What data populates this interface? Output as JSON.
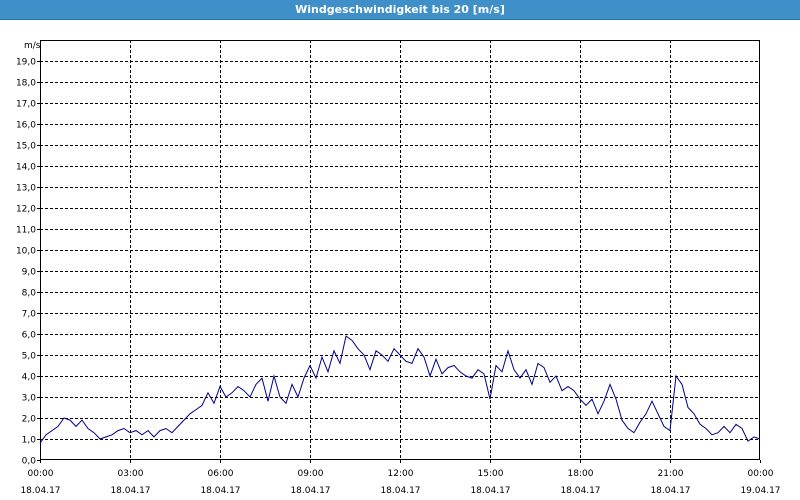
{
  "window": {
    "title": "Windgeschwindigkeit bis 20 [m/s]"
  },
  "chart_data": {
    "type": "line",
    "title": "Windgeschwindigkeit bis 20 [m/s]",
    "ylabel": "m/s",
    "xlabel": "",
    "ylim": [
      0,
      20
    ],
    "yticks": [
      "0,0",
      "1,0",
      "2,0",
      "3,0",
      "4,0",
      "5,0",
      "6,0",
      "7,0",
      "8,0",
      "9,0",
      "10,0",
      "11,0",
      "12,0",
      "13,0",
      "14,0",
      "15,0",
      "16,0",
      "17,0",
      "18,0",
      "19,0"
    ],
    "xticks": [
      {
        "time": "00:00",
        "date": "18.04.17"
      },
      {
        "time": "03:00",
        "date": "18.04.17"
      },
      {
        "time": "06:00",
        "date": "18.04.17"
      },
      {
        "time": "09:00",
        "date": "18.04.17"
      },
      {
        "time": "12:00",
        "date": "18.04.17"
      },
      {
        "time": "15:00",
        "date": "18.04.17"
      },
      {
        "time": "18:00",
        "date": "18.04.17"
      },
      {
        "time": "21:00",
        "date": "18.04.17"
      },
      {
        "time": "00:00",
        "date": "19.04.17"
      }
    ],
    "grid": true,
    "colors": {
      "line": "#00008b",
      "title_bar": "#3f8fc9"
    },
    "series": [
      {
        "x_hours": [
          0,
          0.2,
          0.4,
          0.6,
          0.8,
          1.0,
          1.2,
          1.4,
          1.6,
          1.8,
          2.0,
          2.2,
          2.4,
          2.6,
          2.8,
          3.0,
          3.2,
          3.4,
          3.6,
          3.8,
          4.0,
          4.2,
          4.4,
          4.6,
          4.8,
          5.0,
          5.2,
          5.4,
          5.6,
          5.8,
          6.0,
          6.2,
          6.4,
          6.6,
          6.8,
          7.0,
          7.2,
          7.4,
          7.6,
          7.8,
          8.0,
          8.2,
          8.4,
          8.6,
          8.8,
          9.0,
          9.2,
          9.4,
          9.6,
          9.8,
          10.0,
          10.2,
          10.4,
          10.6,
          10.8,
          11.0,
          11.2,
          11.4,
          11.6,
          11.8,
          12.0,
          12.2,
          12.4,
          12.6,
          12.8,
          13.0,
          13.2,
          13.4,
          13.6,
          13.8,
          14.0,
          14.2,
          14.4,
          14.6,
          14.8,
          15.0,
          15.2,
          15.4,
          15.6,
          15.8,
          16.0,
          16.2,
          16.4,
          16.6,
          16.8,
          17.0,
          17.2,
          17.4,
          17.6,
          17.8,
          18.0,
          18.2,
          18.4,
          18.6,
          18.8,
          19.0,
          19.2,
          19.4,
          19.6,
          19.8,
          20.0,
          20.2,
          20.4,
          20.6,
          20.8,
          21.0,
          21.2,
          21.4,
          21.6,
          21.8,
          22.0,
          22.2,
          22.4,
          22.6,
          22.8,
          23.0,
          23.2,
          23.4,
          23.6,
          23.8,
          24.0
        ],
        "values": [
          0.8,
          1.2,
          1.4,
          1.6,
          2.0,
          1.9,
          1.6,
          1.9,
          1.5,
          1.3,
          1.0,
          1.1,
          1.2,
          1.4,
          1.5,
          1.3,
          1.4,
          1.2,
          1.4,
          1.1,
          1.4,
          1.5,
          1.3,
          1.6,
          1.9,
          2.2,
          2.4,
          2.6,
          3.2,
          2.7,
          3.5,
          3.0,
          3.2,
          3.5,
          3.3,
          3.0,
          3.6,
          3.9,
          2.8,
          4.0,
          3.0,
          2.7,
          3.6,
          3.0,
          3.9,
          4.5,
          3.9,
          4.9,
          4.2,
          5.2,
          4.6,
          5.9,
          5.7,
          5.3,
          5.0,
          4.3,
          5.2,
          5.0,
          4.7,
          5.3,
          5.0,
          4.7,
          4.6,
          5.3,
          4.9,
          4.0,
          4.8,
          4.1,
          4.4,
          4.5,
          4.2,
          4.0,
          3.9,
          4.3,
          4.1,
          2.9,
          4.5,
          4.2,
          5.2,
          4.3,
          3.9,
          4.3,
          3.6,
          4.6,
          4.4,
          3.7,
          4.0,
          3.3,
          3.5,
          3.3,
          2.9,
          2.6,
          2.9,
          2.2,
          2.8,
          3.6,
          2.9,
          1.9,
          1.5,
          1.3,
          1.8,
          2.2,
          2.8,
          2.2,
          1.6,
          1.4,
          4.0,
          3.6,
          2.5,
          2.2,
          1.7,
          1.5,
          1.2,
          1.3,
          1.6,
          1.3,
          1.7,
          1.5,
          0.9,
          1.1,
          1.0
        ]
      }
    ]
  }
}
